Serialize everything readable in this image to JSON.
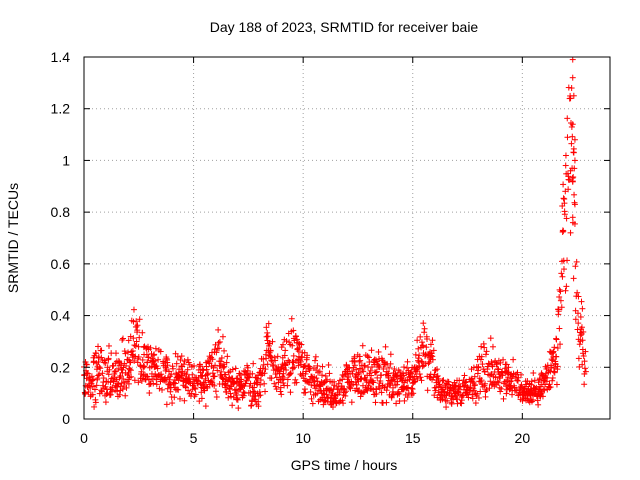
{
  "chart_data": {
    "type": "scatter",
    "title": "Day 188 of 2023, SRMTID for receiver baie",
    "xlabel": "GPS time / hours",
    "ylabel": "SRMTID / TECUs",
    "xlim": [
      0,
      24
    ],
    "ylim": [
      0,
      1.4
    ],
    "xticks": [
      0,
      5,
      10,
      15,
      20
    ],
    "xtick_labels": [
      "0",
      "5",
      "10",
      "15",
      "20"
    ],
    "yticks": [
      0,
      0.2,
      0.4,
      0.6,
      0.8,
      1,
      1.2,
      1.4
    ],
    "ytick_labels": [
      "0",
      "0.2",
      "0.4",
      "0.6",
      "0.8",
      "1",
      "1.2",
      "1.4"
    ],
    "grid": true,
    "marker": "+",
    "color": "#ff0000",
    "series": [
      {
        "name": "SRMTID",
        "profile": {
          "hours": [
            0.0,
            0.5,
            1.0,
            1.5,
            2.0,
            2.3,
            2.6,
            3.0,
            3.5,
            4.0,
            4.5,
            5.0,
            5.5,
            5.9,
            6.3,
            6.7,
            7.0,
            7.5,
            8.0,
            8.4,
            8.7,
            9.0,
            9.5,
            10.0,
            10.5,
            11.0,
            11.5,
            12.0,
            12.5,
            13.0,
            13.5,
            14.0,
            14.5,
            15.0,
            15.5,
            15.8,
            16.2,
            16.5,
            17.0,
            17.5,
            18.0,
            18.5,
            18.9,
            19.3,
            19.7,
            20.0,
            20.5,
            21.0,
            21.3,
            21.6,
            21.8,
            22.0,
            22.1,
            22.2,
            22.3,
            22.4,
            22.5,
            22.7,
            22.9
          ],
          "center": [
            0.15,
            0.18,
            0.17,
            0.15,
            0.2,
            0.3,
            0.22,
            0.2,
            0.18,
            0.17,
            0.18,
            0.16,
            0.15,
            0.2,
            0.22,
            0.14,
            0.12,
            0.13,
            0.12,
            0.28,
            0.15,
            0.18,
            0.26,
            0.2,
            0.15,
            0.12,
            0.1,
            0.15,
            0.18,
            0.16,
            0.17,
            0.15,
            0.12,
            0.15,
            0.25,
            0.22,
            0.12,
            0.1,
            0.11,
            0.12,
            0.16,
            0.2,
            0.18,
            0.15,
            0.14,
            0.11,
            0.11,
            0.14,
            0.18,
            0.28,
            0.55,
            0.8,
            1.0,
            1.15,
            0.9,
            0.65,
            0.4,
            0.3,
            0.2
          ],
          "spread": [
            0.07,
            0.08,
            0.08,
            0.07,
            0.08,
            0.09,
            0.08,
            0.07,
            0.07,
            0.07,
            0.07,
            0.06,
            0.06,
            0.08,
            0.09,
            0.06,
            0.05,
            0.06,
            0.06,
            0.1,
            0.07,
            0.07,
            0.09,
            0.08,
            0.07,
            0.06,
            0.05,
            0.07,
            0.08,
            0.07,
            0.07,
            0.07,
            0.05,
            0.06,
            0.09,
            0.08,
            0.04,
            0.04,
            0.04,
            0.05,
            0.07,
            0.09,
            0.07,
            0.06,
            0.05,
            0.04,
            0.04,
            0.05,
            0.07,
            0.12,
            0.2,
            0.3,
            0.3,
            0.25,
            0.3,
            0.2,
            0.12,
            0.1,
            0.08
          ]
        },
        "peak_points": [
          [
            22.3,
            1.39
          ],
          [
            22.3,
            1.32
          ],
          [
            22.25,
            1.28
          ],
          [
            22.35,
            1.25
          ],
          [
            22.3,
            1.14
          ],
          [
            22.4,
            1.08
          ],
          [
            22.35,
            1.03
          ],
          [
            22.4,
            1.0
          ],
          [
            22.2,
            0.96
          ],
          [
            22.3,
            0.92
          ],
          [
            22.4,
            0.83
          ],
          [
            22.3,
            0.78
          ],
          [
            22.2,
            0.72
          ]
        ]
      }
    ]
  }
}
